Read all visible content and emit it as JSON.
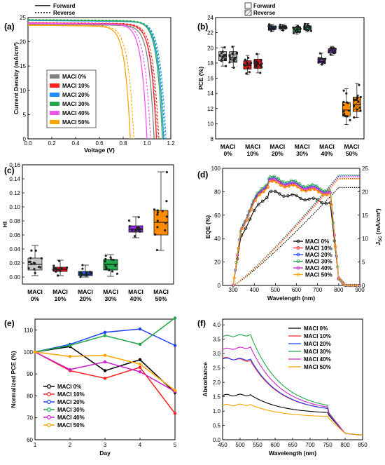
{
  "chart_data": [
    {
      "panel": "(a)",
      "type": "line",
      "xlabel": "Voltage (V)",
      "ylabel": "Current Density  (mA/cm²)",
      "xlim": [
        0,
        1.2
      ],
      "ylim": [
        0,
        25
      ],
      "xticks": [
        "0.0",
        "0.2",
        "0.4",
        "0.6",
        "0.8",
        "1.0",
        "1.2"
      ],
      "yticks": [
        "0",
        "5",
        "10",
        "15",
        "20",
        "25"
      ],
      "style_legend": [
        "Forward",
        "Reverse"
      ],
      "series": [
        {
          "name": "MACI 0%",
          "color": "#808080",
          "jsc": 23.6,
          "voc_f": 1.06,
          "voc_r": 1.09
        },
        {
          "name": "MACI 10%",
          "color": "#ff2020",
          "jsc": 23.9,
          "voc_f": 1.08,
          "voc_r": 1.1
        },
        {
          "name": "MACI 20%",
          "color": "#1e90ff",
          "jsc": 24.4,
          "voc_f": 1.14,
          "voc_r": 1.16
        },
        {
          "name": "MACI 30%",
          "color": "#22a84a",
          "jsc": 24.5,
          "voc_f": 1.13,
          "voc_r": 1.15
        },
        {
          "name": "MACI 40%",
          "color": "#ee55ee",
          "jsc": 23.8,
          "voc_f": 1.0,
          "voc_r": 1.03
        },
        {
          "name": "MACI 50%",
          "color": "#ffa500",
          "jsc": 23.4,
          "voc_f": 0.86,
          "voc_r": 0.89
        }
      ]
    },
    {
      "panel": "(b)",
      "type": "box",
      "ylabel": "PCE  (%)",
      "ylim": [
        8,
        24
      ],
      "yticks": [
        "8",
        "10",
        "12",
        "14",
        "16",
        "18",
        "20",
        "22",
        "24"
      ],
      "categories": [
        "MACI\n0%",
        "MACI\n10%",
        "MACI\n20%",
        "MACI\n30%",
        "MACI\n40%",
        "MACI\n50%"
      ],
      "style_legend": [
        "Forward",
        "Reverse"
      ],
      "boxes": [
        {
          "cat": 0,
          "color": "#b0b0b0",
          "forward": [
            17.6,
            18.3,
            18.9,
            19.5,
            20.1
          ],
          "reverse": [
            17.4,
            18.1,
            18.7,
            19.5,
            20.2
          ]
        },
        {
          "cat": 1,
          "color": "#ee1111",
          "forward": [
            16.5,
            17.2,
            17.7,
            18.3,
            19.0
          ],
          "reverse": [
            16.7,
            17.3,
            17.8,
            18.5,
            19.2
          ]
        },
        {
          "cat": 2,
          "color": "#1e5fd8",
          "forward": [
            22.2,
            22.4,
            22.6,
            22.9,
            23.1
          ],
          "reverse": [
            22.3,
            22.5,
            22.7,
            22.9,
            23.1
          ]
        },
        {
          "cat": 3,
          "color": "#22a84a",
          "forward": [
            21.8,
            22.1,
            22.4,
            22.7,
            23.0
          ],
          "reverse": [
            22.1,
            22.4,
            22.7,
            22.9,
            23.2
          ]
        },
        {
          "cat": 4,
          "color": "#8a2be2",
          "forward": [
            17.8,
            18.0,
            18.2,
            18.6,
            19.3
          ],
          "reverse": [
            19.0,
            19.3,
            19.6,
            19.9,
            20.2
          ]
        },
        {
          "cat": 5,
          "color": "#ff8c00",
          "forward": [
            9.9,
            11.0,
            11.8,
            12.8,
            14.6
          ],
          "reverse": [
            10.8,
            11.6,
            12.5,
            13.5,
            15.3
          ]
        }
      ]
    },
    {
      "panel": "(c)",
      "type": "box",
      "ylabel": "HI",
      "ylim": [
        -0.01,
        0.16
      ],
      "yticks": [
        "0.00",
        "0.02",
        "0.04",
        "0.06",
        "0.08",
        "0.10",
        "0.12",
        "0.14",
        "0.16"
      ],
      "categories": [
        "MACI\n0%",
        "MACI\n10%",
        "MACI\n20%",
        "MACI\n30%",
        "MACI\n40%",
        "MACI\n50%"
      ],
      "boxes": [
        {
          "cat": 0,
          "color": "#c8c8c8",
          "stats": [
            0.002,
            0.01,
            0.018,
            0.027,
            0.045
          ]
        },
        {
          "cat": 1,
          "color": "#ee1111",
          "stats": [
            0.002,
            0.008,
            0.011,
            0.014,
            0.024
          ]
        },
        {
          "cat": 2,
          "color": "#1e5fd8",
          "stats": [
            0.0,
            0.002,
            0.004,
            0.008,
            0.017
          ]
        },
        {
          "cat": 3,
          "color": "#22a84a",
          "stats": [
            0.001,
            0.01,
            0.018,
            0.025,
            0.032
          ]
        },
        {
          "cat": 4,
          "color": "#8a2be2",
          "stats": [
            0.056,
            0.064,
            0.068,
            0.073,
            0.086
          ]
        },
        {
          "cat": 5,
          "color": "#ff8c00",
          "stats": [
            0.038,
            0.06,
            0.078,
            0.095,
            0.15
          ]
        }
      ]
    },
    {
      "panel": "(d)",
      "type": "line",
      "xlabel": "Wavelength (nm)",
      "ylabel": "EQE (%)",
      "y2label": "J",
      "y2label_sub": "SC",
      "y2label_unit": " (mA/cm²)",
      "xlim": [
        250,
        900
      ],
      "ylim": [
        0,
        100
      ],
      "y2lim": [
        0,
        25
      ],
      "xticks": [
        "300",
        "400",
        "500",
        "600",
        "700",
        "800",
        "900"
      ],
      "yticks": [
        "0",
        "20",
        "40",
        "60",
        "80",
        "100"
      ],
      "y2ticks": [
        "0",
        "5",
        "10",
        "15",
        "20",
        "25"
      ],
      "series": [
        {
          "name": "MACI 0%",
          "color": "#000000",
          "scale": 0.865,
          "jsc_end": 20.9
        },
        {
          "name": "MACI 10%",
          "color": "#ff2020",
          "scale": 0.96,
          "jsc_end": 22.8
        },
        {
          "name": "MACI 20%",
          "color": "#1e40ff",
          "scale": 0.985,
          "jsc_end": 23.4
        },
        {
          "name": "MACI 30%",
          "color": "#22a84a",
          "scale": 1.0,
          "jsc_end": 23.6
        },
        {
          "name": "MACI 40%",
          "color": "#cc22cc",
          "scale": 0.975,
          "jsc_end": 23.2
        },
        {
          "name": "MACI 50%",
          "color": "#ffa500",
          "scale": 0.955,
          "jsc_end": 22.7
        }
      ]
    },
    {
      "panel": "(e)",
      "type": "line",
      "xlabel": "Day",
      "ylabel": "Normalized PCE (%)",
      "xlim": [
        1,
        5
      ],
      "ylim": [
        60,
        115
      ],
      "xticks": [
        "1",
        "2",
        "3",
        "4",
        "5"
      ],
      "yticks": [
        "60",
        "70",
        "80",
        "90",
        "100",
        "110"
      ],
      "x": [
        1,
        2,
        3,
        4,
        5
      ],
      "series": [
        {
          "name": "MACI 0%",
          "color": "#000000",
          "values": [
            100,
            102.5,
            91.5,
            96.5,
            81.5
          ]
        },
        {
          "name": "MACI 10%",
          "color": "#ff2020",
          "values": [
            100,
            91.5,
            88.0,
            93.0,
            72.0
          ]
        },
        {
          "name": "MACI 20%",
          "color": "#1e40ff",
          "values": [
            100,
            103.5,
            109.0,
            110.5,
            103.0
          ]
        },
        {
          "name": "MACI 30%",
          "color": "#22a84a",
          "values": [
            100,
            103.0,
            107.5,
            103.5,
            115.5
          ]
        },
        {
          "name": "MACI 40%",
          "color": "#cc22cc",
          "values": [
            100,
            92.0,
            95.5,
            91.0,
            82.0
          ]
        },
        {
          "name": "MACI 50%",
          "color": "#ffa500",
          "values": [
            100,
            98.0,
            98.5,
            94.5,
            82.5
          ]
        }
      ]
    },
    {
      "panel": "(f)",
      "type": "line",
      "xlabel": "Wavelength  (nm)",
      "ylabel": "Absorbance",
      "xlim": [
        450,
        850
      ],
      "ylim": [
        0,
        4.2
      ],
      "xticks": [
        "450",
        "500",
        "550",
        "600",
        "650",
        "700",
        "750",
        "800",
        "850"
      ],
      "yticks": [
        "0.0",
        "0.5",
        "1.0",
        "1.5",
        "2.0",
        "2.5",
        "3.0",
        "3.5",
        "4.0"
      ],
      "series": [
        {
          "name": "MACI 0%",
          "color": "#000000",
          "y450": 1.55,
          "y530": 1.56,
          "y750": 0.9
        },
        {
          "name": "MACI 10%",
          "color": "#ff2020",
          "y450": 2.85,
          "y530": 2.75,
          "y750": 0.95
        },
        {
          "name": "MACI 20%",
          "color": "#1e40ff",
          "y450": 2.82,
          "y530": 2.8,
          "y750": 0.95
        },
        {
          "name": "MACI 30%",
          "color": "#22a84a",
          "y450": 3.6,
          "y530": 3.65,
          "y750": 1.0
        },
        {
          "name": "MACI 40%",
          "color": "#cc22cc",
          "y450": 3.15,
          "y530": 3.22,
          "y750": 0.97
        },
        {
          "name": "MACI 50%",
          "color": "#ffa500",
          "y450": 1.2,
          "y530": 1.22,
          "y750": 0.78
        }
      ]
    }
  ]
}
